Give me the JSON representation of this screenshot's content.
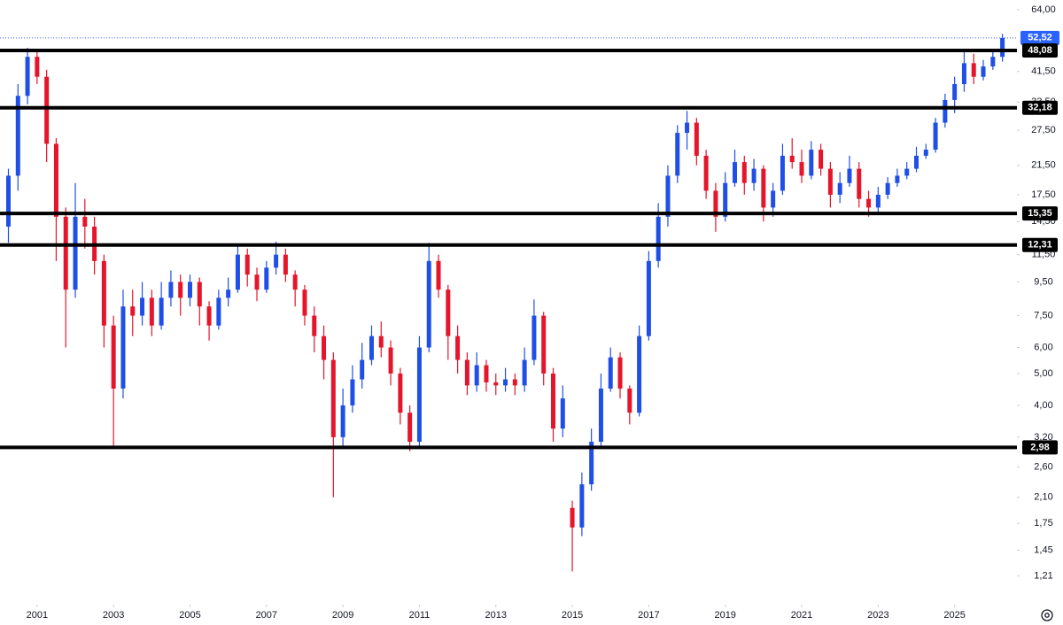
{
  "chart_data": {
    "type": "candlestick",
    "log_scale": true,
    "up_color": "#1f4fe6",
    "down_color": "#e5152b",
    "level_color": "#000000",
    "last_color": "#2962ff",
    "xlim": [
      2000.03,
      2026.63
    ],
    "xticks": [
      2001,
      2003,
      2005,
      2007,
      2009,
      2011,
      2013,
      2015,
      2017,
      2019,
      2021,
      2023,
      2025
    ],
    "ylim": [
      0.99,
      68.5
    ],
    "yticks": [
      {
        "value": 64,
        "label": "64,00"
      },
      {
        "value": 41.5,
        "label": "41,50"
      },
      {
        "value": 33.5,
        "label": "33,50"
      },
      {
        "value": 27.5,
        "label": "27,50"
      },
      {
        "value": 21.5,
        "label": "21,50"
      },
      {
        "value": 17.5,
        "label": "17,50"
      },
      {
        "value": 14.5,
        "label": "14,50"
      },
      {
        "value": 11.5,
        "label": "11,50"
      },
      {
        "value": 9.5,
        "label": "9,50"
      },
      {
        "value": 7.5,
        "label": "7,50"
      },
      {
        "value": 6,
        "label": "6,00"
      },
      {
        "value": 5,
        "label": "5,00"
      },
      {
        "value": 4,
        "label": "4,00"
      },
      {
        "value": 3.2,
        "label": "3,20"
      },
      {
        "value": 2.6,
        "label": "2,60"
      },
      {
        "value": 2.1,
        "label": "2,10"
      },
      {
        "value": 1.75,
        "label": "1,75"
      },
      {
        "value": 1.45,
        "label": "1,45"
      },
      {
        "value": 1.21,
        "label": "1,21"
      }
    ],
    "levels": [
      {
        "value": 48.08,
        "label": "48,08"
      },
      {
        "value": 32.18,
        "label": "32,18"
      },
      {
        "value": 15.35,
        "label": "15,35"
      },
      {
        "value": 12.31,
        "label": "12,31"
      },
      {
        "value": 2.98,
        "label": "2,98"
      }
    ],
    "last": {
      "value": 52.52,
      "label": "52,52"
    },
    "x": [
      2000.25,
      2000.5,
      2000.75,
      2001,
      2001.25,
      2001.5,
      2001.75,
      2002,
      2002.25,
      2002.5,
      2002.75,
      2003,
      2003.25,
      2003.5,
      2003.75,
      2004,
      2004.25,
      2004.5,
      2004.75,
      2005,
      2005.25,
      2005.5,
      2005.75,
      2006,
      2006.25,
      2006.5,
      2006.75,
      2007,
      2007.25,
      2007.5,
      2007.75,
      2008,
      2008.25,
      2008.5,
      2008.75,
      2009,
      2009.25,
      2009.5,
      2009.75,
      2010,
      2010.25,
      2010.5,
      2010.75,
      2011,
      2011.25,
      2011.5,
      2011.75,
      2012,
      2012.25,
      2012.5,
      2012.75,
      2013,
      2013.25,
      2013.5,
      2013.75,
      2014,
      2014.25,
      2014.5,
      2014.75,
      2015,
      2015.25,
      2015.5,
      2015.75,
      2016,
      2016.25,
      2016.5,
      2016.75,
      2017,
      2017.25,
      2017.5,
      2017.75,
      2018,
      2018.25,
      2018.5,
      2018.75,
      2019,
      2019.25,
      2019.5,
      2019.75,
      2020,
      2020.25,
      2020.5,
      2020.75,
      2021,
      2021.25,
      2021.5,
      2021.75,
      2022,
      2022.25,
      2022.5,
      2022.75,
      2023,
      2023.25,
      2023.5,
      2023.75,
      2024,
      2024.25,
      2024.5,
      2024.75,
      2025,
      2025.25,
      2025.5,
      2025.75,
      2026,
      2026.25
    ],
    "open": [
      14,
      20,
      35,
      46,
      40,
      25,
      15,
      9,
      15,
      14,
      11,
      7,
      4.5,
      8,
      7.5,
      8.5,
      7,
      8.5,
      9.5,
      8.5,
      9.5,
      8,
      7,
      8.5,
      9,
      11.5,
      10,
      9,
      10.5,
      11.5,
      10,
      9,
      7.5,
      6.5,
      5.5,
      3.2,
      4,
      4.8,
      5.5,
      6.5,
      6,
      5,
      3.8,
      3.1,
      6,
      11,
      9,
      6.5,
      5.5,
      4.6,
      5.3,
      4.7,
      4.6,
      4.8,
      4.6,
      5.5,
      7.5,
      5,
      3.4,
      1.95,
      1.7,
      2.3,
      3.1,
      4.5,
      5.6,
      4.5,
      3.8,
      6.5,
      11,
      15,
      20,
      27,
      29,
      23,
      18,
      15,
      19,
      22,
      19,
      21,
      16,
      18,
      23,
      22,
      20,
      24,
      21,
      17.5,
      19,
      21,
      17,
      16,
      17.5,
      19,
      20,
      21,
      23,
      24,
      29,
      34,
      38,
      44,
      40,
      43,
      46
    ],
    "high": [
      21,
      38,
      49,
      48,
      42,
      26,
      16,
      19,
      17,
      15,
      11.5,
      7.5,
      9,
      9,
      9.5,
      9,
      9.5,
      10.3,
      10,
      10,
      9.8,
      8.3,
      9,
      9.8,
      12.3,
      12,
      10.5,
      11,
      12.6,
      12,
      10.3,
      9.3,
      8,
      7,
      5.8,
      4.5,
      5.3,
      6.2,
      7,
      7.2,
      6.3,
      5.2,
      4,
      6.5,
      12.5,
      11.5,
      9.3,
      7,
      5.8,
      5.8,
      5.5,
      5,
      5.2,
      5,
      6,
      8.4,
      7.7,
      5.2,
      4.6,
      2.05,
      2.5,
      3.4,
      5,
      6,
      5.8,
      4.6,
      7,
      11.8,
      16.5,
      21.5,
      28.5,
      31.5,
      30,
      24,
      19,
      20.5,
      24,
      23,
      22.5,
      21.5,
      19,
      25,
      26,
      24,
      25.5,
      25,
      22,
      20.5,
      23,
      22,
      18,
      18.5,
      19.8,
      21,
      22,
      24.5,
      25,
      30,
      35.5,
      40,
      48,
      47,
      45,
      48,
      54
    ],
    "low": [
      12.5,
      18,
      33,
      38,
      22,
      11,
      6,
      8.5,
      12,
      10,
      6,
      2.98,
      4.2,
      6.5,
      7,
      6.5,
      6.8,
      8,
      7.5,
      8,
      7,
      6.3,
      6.8,
      8,
      8.8,
      9.2,
      8.3,
      8.8,
      10,
      9.5,
      8,
      7,
      5.8,
      4.8,
      2.1,
      3,
      3.8,
      4.5,
      5.3,
      5.6,
      4.6,
      3.5,
      2.9,
      3,
      5.8,
      8.5,
      5.5,
      5,
      4.3,
      4.4,
      4.4,
      4.3,
      4.4,
      4.3,
      4.4,
      5.3,
      4.6,
      3.1,
      3.2,
      1.25,
      1.6,
      2.2,
      3,
      4.4,
      4.2,
      3.5,
      3.7,
      6.3,
      10.5,
      14,
      19,
      24,
      21.5,
      17,
      13.5,
      14.5,
      18.5,
      17.5,
      18,
      14.5,
      15,
      17.5,
      21,
      19,
      19.5,
      20,
      16,
      16.5,
      18.5,
      16,
      15,
      15.3,
      17,
      18.5,
      19.5,
      20.5,
      22.5,
      23.5,
      28,
      31,
      36,
      38,
      39,
      42,
      44.5
    ],
    "close": [
      20,
      35,
      46,
      40,
      25,
      15,
      9,
      15,
      14,
      11,
      7,
      4.5,
      8,
      7.5,
      8.5,
      7,
      8.5,
      9.5,
      8.5,
      9.5,
      8,
      7,
      8.5,
      9,
      11.5,
      10,
      9,
      10.5,
      11.5,
      10,
      9,
      7.5,
      6.5,
      5.5,
      3.2,
      4,
      4.8,
      5.5,
      6.5,
      6,
      5,
      3.8,
      3.1,
      6,
      11,
      9,
      6.5,
      5.5,
      4.6,
      5.3,
      4.7,
      4.6,
      4.8,
      4.6,
      5.5,
      7.5,
      5,
      3.4,
      4.2,
      1.7,
      2.3,
      3.1,
      4.5,
      5.6,
      4.5,
      3.8,
      6.5,
      11,
      15,
      20,
      27,
      29,
      23,
      18,
      15,
      19,
      22,
      19,
      21,
      16,
      18,
      23,
      22,
      20,
      24,
      21,
      17.5,
      19,
      21,
      17,
      16,
      17.5,
      19,
      20,
      21,
      23,
      24,
      29,
      34,
      38,
      44,
      40,
      43,
      46,
      52.52
    ]
  }
}
